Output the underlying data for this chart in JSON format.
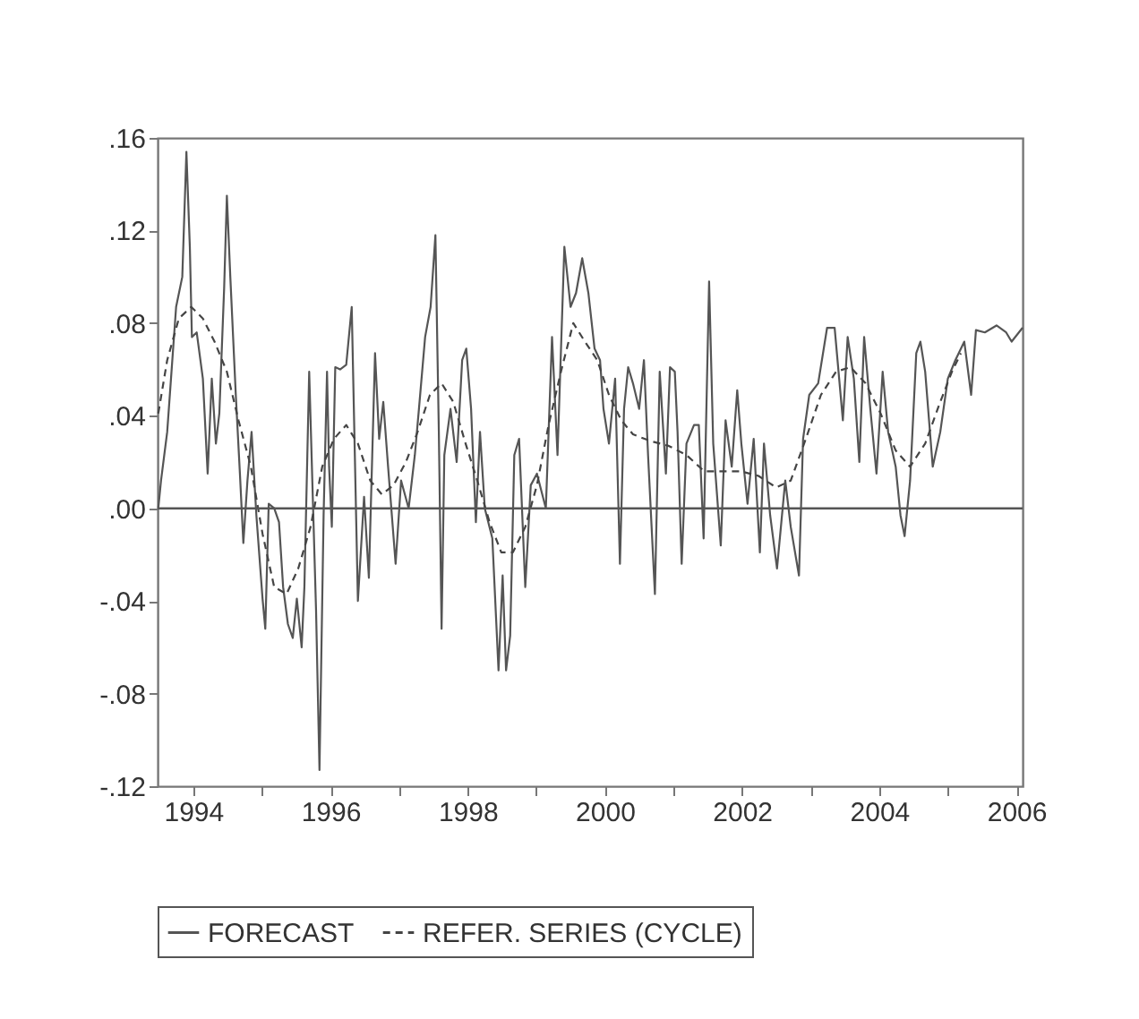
{
  "chart_data": {
    "type": "line",
    "xlim": [
      1993.48,
      2006.09
    ],
    "xticks": [
      1994,
      {
        "value": 1995,
        "label": null
      },
      1996,
      {
        "value": 1997,
        "label": null
      },
      1998,
      {
        "value": 1999,
        "label": null
      },
      2000,
      {
        "value": 2001,
        "label": null
      },
      2002,
      {
        "value": 2003,
        "label": null
      },
      2004,
      {
        "value": 2005,
        "label": null
      },
      2006
    ],
    "ylim": [
      -0.12,
      0.16
    ],
    "yticks": [
      {
        "value": -0.12,
        "label": "-.12"
      },
      {
        "value": -0.08,
        "label": "-.08"
      },
      {
        "value": -0.04,
        "label": "-.04"
      },
      {
        "value": 0,
        "label": ".00"
      },
      {
        "value": 0.04,
        "label": ".04"
      },
      {
        "value": 0.08,
        "label": ".08"
      },
      {
        "value": 0.12,
        "label": ".12"
      },
      {
        "value": 0.16,
        "label": ".16"
      }
    ],
    "grid": false,
    "legend": "bottom",
    "ref_lines": [
      {
        "axis": "y",
        "value": 0,
        "color": "#555555"
      }
    ],
    "series": [
      {
        "name": "FORECAST",
        "color": "#555555",
        "line_style": "solid",
        "x": [
          1993.49,
          1993.53,
          1993.62,
          1993.75,
          1993.84,
          1993.9,
          1993.95,
          1993.98,
          1994.05,
          1994.14,
          1994.21,
          1994.27,
          1994.33,
          1994.38,
          1994.45,
          1994.49,
          1994.54,
          1994.62,
          1994.68,
          1994.73,
          1994.79,
          1994.85,
          1994.92,
          1995.01,
          1995.05,
          1995.1,
          1995.18,
          1995.25,
          1995.31,
          1995.38,
          1995.45,
          1995.51,
          1995.58,
          1995.62,
          1995.69,
          1995.75,
          1995.79,
          1995.84,
          1995.9,
          1995.95,
          1995.98,
          1996.02,
          1996.07,
          1996.14,
          1996.23,
          1996.31,
          1996.4,
          1996.49,
          1996.56,
          1996.65,
          1996.71,
          1996.77,
          1996.84,
          1996.95,
          1997.03,
          1997.14,
          1997.23,
          1997.29,
          1997.38,
          1997.46,
          1997.53,
          1997.58,
          1997.62,
          1997.66,
          1997.75,
          1997.84,
          1997.92,
          1997.98,
          1998.05,
          1998.12,
          1998.18,
          1998.25,
          1998.36,
          1998.45,
          1998.51,
          1998.56,
          1998.62,
          1998.68,
          1998.75,
          1998.84,
          1998.92,
          1999.01,
          1999.14,
          1999.23,
          1999.31,
          1999.41,
          1999.5,
          1999.58,
          1999.67,
          1999.76,
          1999.85,
          1999.93,
          1999.98,
          2000.06,
          2000.15,
          2000.22,
          2000.28,
          2000.34,
          2000.41,
          2000.5,
          2000.57,
          2000.63,
          2000.73,
          2000.8,
          2000.89,
          2000.95,
          2001.02,
          2001.06,
          2001.12,
          2001.19,
          2001.3,
          2001.37,
          2001.44,
          2001.52,
          2001.58,
          2001.69,
          2001.76,
          2001.85,
          2001.93,
          2001.99,
          2002.08,
          2002.17,
          2002.26,
          2002.32,
          2002.41,
          2002.51,
          2002.63,
          2002.71,
          2002.83,
          2002.89,
          2002.98,
          2003.11,
          2003.24,
          2003.35,
          2003.47,
          2003.54,
          2003.63,
          2003.71,
          2003.78,
          2003.87,
          2003.96,
          2004.05,
          2004.13,
          2004.24,
          2004.31,
          2004.37,
          2004.45,
          2004.54,
          2004.6,
          2004.67,
          2004.78,
          2004.89,
          2005.0,
          2005.11,
          2005.24,
          2005.34,
          2005.41,
          2005.54,
          2005.71,
          2005.85,
          2005.93,
          2006.09
        ],
        "values": [
          0.0,
          0.012,
          0.033,
          0.087,
          0.1,
          0.154,
          0.113,
          0.074,
          0.076,
          0.056,
          0.015,
          0.056,
          0.028,
          0.041,
          0.095,
          0.135,
          0.1,
          0.049,
          0.015,
          -0.015,
          0.012,
          0.033,
          -0.003,
          -0.039,
          -0.052,
          0.002,
          0.0,
          -0.006,
          -0.034,
          -0.05,
          -0.056,
          -0.039,
          -0.06,
          -0.034,
          0.059,
          -0.003,
          -0.044,
          -0.113,
          -0.003,
          0.059,
          0.018,
          -0.008,
          0.061,
          0.06,
          0.062,
          0.087,
          -0.04,
          0.005,
          -0.03,
          0.067,
          0.03,
          0.046,
          0.018,
          -0.024,
          0.012,
          0.0,
          0.023,
          0.043,
          0.074,
          0.087,
          0.118,
          0.033,
          -0.052,
          0.023,
          0.043,
          0.02,
          0.064,
          0.069,
          0.043,
          -0.006,
          0.033,
          0.0,
          -0.013,
          -0.07,
          -0.029,
          -0.07,
          -0.055,
          0.023,
          0.03,
          -0.034,
          0.01,
          0.015,
          0.0,
          0.074,
          0.023,
          0.113,
          0.087,
          0.093,
          0.108,
          0.093,
          0.069,
          0.064,
          0.043,
          0.028,
          0.056,
          -0.024,
          0.043,
          0.061,
          0.054,
          0.043,
          0.064,
          0.023,
          -0.037,
          0.059,
          0.015,
          0.061,
          0.059,
          0.033,
          -0.024,
          0.028,
          0.036,
          0.036,
          -0.013,
          0.098,
          0.028,
          -0.016,
          0.038,
          0.018,
          0.051,
          0.028,
          0.002,
          0.03,
          -0.019,
          0.028,
          -0.003,
          -0.026,
          0.012,
          -0.008,
          -0.029,
          0.03,
          0.049,
          0.054,
          0.078,
          0.078,
          0.038,
          0.074,
          0.056,
          0.02,
          0.074,
          0.043,
          0.015,
          0.059,
          0.033,
          0.018,
          -0.003,
          -0.012,
          0.012,
          0.067,
          0.072,
          0.059,
          0.018,
          0.033,
          0.056,
          0.064,
          0.072,
          0.049,
          0.077,
          0.076,
          0.079,
          0.076,
          0.072,
          0.078
        ]
      },
      {
        "name": "REFER. SERIES (CYCLE)",
        "color": "#444444",
        "line_style": "dashed",
        "x": [
          1993.49,
          1993.62,
          1993.79,
          1993.97,
          1994.14,
          1994.31,
          1994.49,
          1994.66,
          1994.84,
          1995.01,
          1995.18,
          1995.36,
          1995.53,
          1995.71,
          1995.88,
          1996.05,
          1996.23,
          1996.4,
          1996.58,
          1996.75,
          1996.92,
          1997.1,
          1997.27,
          1997.45,
          1997.62,
          1997.79,
          1997.97,
          1998.14,
          1998.32,
          1998.49,
          1998.66,
          1998.84,
          1999.01,
          1999.18,
          1999.36,
          1999.54,
          1999.71,
          1999.89,
          2000.06,
          2000.24,
          2000.41,
          2000.67,
          2000.93,
          2001.19,
          2001.45,
          2001.71,
          2001.98,
          2002.24,
          2002.5,
          2002.71,
          2002.93,
          2003.15,
          2003.37,
          2003.58,
          2003.8,
          2004.02,
          2004.24,
          2004.45,
          2004.67,
          2004.89,
          2005.06,
          2005.19
        ],
        "values": [
          0.041,
          0.064,
          0.082,
          0.087,
          0.082,
          0.072,
          0.059,
          0.038,
          0.018,
          -0.011,
          -0.034,
          -0.037,
          -0.026,
          -0.008,
          0.018,
          0.03,
          0.036,
          0.028,
          0.012,
          0.006,
          0.01,
          0.02,
          0.033,
          0.049,
          0.054,
          0.046,
          0.028,
          0.012,
          -0.006,
          -0.019,
          -0.019,
          -0.008,
          0.01,
          0.036,
          0.059,
          0.08,
          0.072,
          0.064,
          0.049,
          0.038,
          0.032,
          0.029,
          0.027,
          0.023,
          0.016,
          0.016,
          0.016,
          0.014,
          0.009,
          0.012,
          0.03,
          0.049,
          0.059,
          0.061,
          0.054,
          0.041,
          0.025,
          0.018,
          0.028,
          0.046,
          0.059,
          0.067
        ]
      }
    ]
  }
}
